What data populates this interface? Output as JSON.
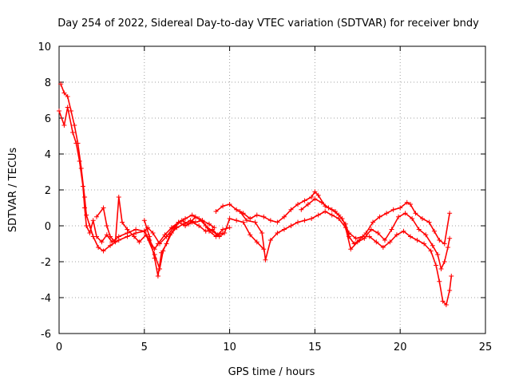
{
  "chart_data": {
    "type": "scatter",
    "title": "Day 254 of 2022, Sidereal Day-to-day VTEC variation (SDTVAR) for receiver bndy",
    "xlabel": "GPS time / hours",
    "ylabel": "SDTVAR / TECUs",
    "xlim": [
      0,
      25
    ],
    "ylim": [
      -6,
      10
    ],
    "xticks": [
      0,
      5,
      10,
      15,
      20,
      25
    ],
    "yticks": [
      -6,
      -4,
      -2,
      0,
      2,
      4,
      6,
      8,
      10
    ],
    "grid": true,
    "marker": "+",
    "color": "#ff0000",
    "series": [
      {
        "name": "track-1",
        "points": [
          [
            0.0,
            6.4
          ],
          [
            0.3,
            5.6
          ],
          [
            0.5,
            6.6
          ],
          [
            0.8,
            5.2
          ],
          [
            1.0,
            4.6
          ],
          [
            1.2,
            3.6
          ],
          [
            1.4,
            2.2
          ],
          [
            1.5,
            1.0
          ],
          [
            1.6,
            0.0
          ],
          [
            1.8,
            -0.4
          ],
          [
            2.0,
            0.3
          ],
          [
            2.2,
            -0.6
          ],
          [
            2.5,
            -0.9
          ],
          [
            2.8,
            -0.5
          ],
          [
            3.1,
            -0.9
          ],
          [
            3.5,
            -0.6
          ],
          [
            4.0,
            -0.4
          ],
          [
            4.5,
            -0.2
          ],
          [
            5.0,
            -0.3
          ],
          [
            5.3,
            -0.8
          ],
          [
            5.6,
            -1.3
          ],
          [
            5.8,
            -1.0
          ],
          [
            6.2,
            -0.5
          ],
          [
            6.6,
            -0.1
          ],
          [
            7.0,
            0.2
          ],
          [
            7.4,
            0.0
          ],
          [
            7.8,
            0.2
          ],
          [
            8.2,
            0.0
          ],
          [
            8.6,
            -0.3
          ],
          [
            9.0,
            -0.2
          ],
          [
            9.3,
            -0.5
          ],
          [
            9.6,
            -0.4
          ]
        ]
      },
      {
        "name": "track-2",
        "points": [
          [
            0.1,
            7.9
          ],
          [
            0.3,
            7.4
          ],
          [
            0.5,
            7.2
          ],
          [
            0.7,
            6.4
          ],
          [
            0.9,
            5.6
          ],
          [
            1.1,
            4.6
          ],
          [
            1.3,
            3.2
          ],
          [
            1.5,
            1.6
          ],
          [
            1.6,
            0.6
          ],
          [
            1.8,
            0.0
          ],
          [
            2.0,
            -0.6
          ],
          [
            2.3,
            -1.2
          ],
          [
            2.6,
            -1.4
          ],
          [
            3.0,
            -1.1
          ],
          [
            3.5,
            -0.8
          ],
          [
            4.0,
            -0.6
          ],
          [
            4.5,
            -0.4
          ],
          [
            5.0,
            -0.3
          ],
          [
            5.2,
            -0.1
          ],
          [
            5.5,
            -0.4
          ],
          [
            5.9,
            -1.0
          ],
          [
            6.3,
            -0.6
          ],
          [
            6.7,
            -0.1
          ],
          [
            7.2,
            0.3
          ],
          [
            7.6,
            0.1
          ],
          [
            8.0,
            0.5
          ],
          [
            8.4,
            0.3
          ],
          [
            8.8,
            -0.3
          ],
          [
            9.2,
            -0.6
          ],
          [
            9.6,
            -0.2
          ],
          [
            10.0,
            -0.1
          ]
        ]
      },
      {
        "name": "track-3",
        "points": [
          [
            2.2,
            0.5
          ],
          [
            2.6,
            1.0
          ],
          [
            2.8,
            0.0
          ],
          [
            3.0,
            -0.6
          ],
          [
            3.3,
            -0.9
          ],
          [
            3.5,
            1.6
          ],
          [
            3.7,
            0.2
          ],
          [
            4.0,
            -0.2
          ],
          [
            4.4,
            -0.6
          ],
          [
            4.7,
            -0.9
          ],
          [
            5.1,
            -0.5
          ],
          [
            5.6,
            -1.6
          ],
          [
            5.9,
            -2.4
          ],
          [
            6.1,
            -1.4
          ],
          [
            6.5,
            -0.5
          ],
          [
            6.9,
            -0.1
          ],
          [
            7.3,
            0.1
          ],
          [
            7.7,
            0.3
          ],
          [
            8.0,
            0.2
          ],
          [
            8.4,
            0.3
          ],
          [
            8.8,
            0.1
          ],
          [
            9.1,
            -0.1
          ]
        ]
      },
      {
        "name": "track-4",
        "points": [
          [
            5.0,
            0.3
          ],
          [
            5.3,
            -0.6
          ],
          [
            5.6,
            -1.8
          ],
          [
            5.8,
            -2.8
          ],
          [
            6.0,
            -1.5
          ],
          [
            6.3,
            -1.0
          ],
          [
            6.6,
            -0.4
          ],
          [
            7.0,
            0.2
          ],
          [
            7.4,
            0.4
          ],
          [
            7.8,
            0.6
          ],
          [
            8.2,
            0.4
          ],
          [
            8.6,
            0.0
          ],
          [
            9.0,
            -0.3
          ],
          [
            9.4,
            -0.6
          ],
          [
            9.7,
            -0.4
          ],
          [
            10.0,
            0.4
          ],
          [
            10.4,
            0.3
          ],
          [
            10.8,
            0.2
          ],
          [
            11.2,
            -0.5
          ],
          [
            11.6,
            -0.9
          ],
          [
            12.0,
            -1.3
          ]
        ]
      },
      {
        "name": "track-5",
        "points": [
          [
            9.2,
            0.8
          ],
          [
            9.6,
            1.1
          ],
          [
            10.0,
            1.2
          ],
          [
            10.4,
            0.9
          ],
          [
            10.8,
            0.7
          ],
          [
            11.2,
            0.4
          ],
          [
            11.6,
            0.6
          ],
          [
            12.0,
            0.5
          ],
          [
            12.4,
            0.3
          ],
          [
            12.8,
            0.2
          ],
          [
            13.2,
            0.5
          ],
          [
            13.6,
            0.9
          ],
          [
            14.0,
            1.2
          ],
          [
            14.4,
            1.4
          ],
          [
            14.8,
            1.6
          ],
          [
            15.0,
            1.9
          ],
          [
            15.2,
            1.7
          ],
          [
            15.6,
            1.1
          ],
          [
            16.0,
            0.9
          ],
          [
            16.4,
            0.6
          ],
          [
            16.8,
            0.1
          ],
          [
            17.0,
            -0.6
          ],
          [
            17.3,
            -1.0
          ],
          [
            17.6,
            -0.8
          ],
          [
            18.0,
            -0.4
          ],
          [
            18.4,
            0.2
          ],
          [
            18.8,
            0.5
          ],
          [
            19.2,
            0.7
          ],
          [
            19.6,
            0.9
          ],
          [
            20.0,
            1.0
          ],
          [
            20.4,
            1.3
          ],
          [
            20.6,
            1.2
          ],
          [
            20.9,
            0.7
          ],
          [
            21.3,
            0.4
          ],
          [
            21.7,
            0.2
          ],
          [
            22.0,
            -0.3
          ],
          [
            22.3,
            -0.8
          ],
          [
            22.6,
            -1.0
          ],
          [
            22.9,
            0.7
          ]
        ]
      },
      {
        "name": "track-6",
        "points": [
          [
            10.6,
            0.8
          ],
          [
            11.0,
            0.3
          ],
          [
            11.5,
            0.2
          ],
          [
            11.9,
            -0.4
          ],
          [
            12.1,
            -1.9
          ],
          [
            12.4,
            -0.8
          ],
          [
            12.8,
            -0.4
          ],
          [
            13.2,
            -0.2
          ],
          [
            13.6,
            0.0
          ],
          [
            14.0,
            0.2
          ],
          [
            14.4,
            0.3
          ],
          [
            14.8,
            0.4
          ],
          [
            15.2,
            0.6
          ],
          [
            15.6,
            0.8
          ],
          [
            16.0,
            0.6
          ],
          [
            16.4,
            0.4
          ],
          [
            16.8,
            -0.1
          ],
          [
            17.1,
            -1.3
          ],
          [
            17.5,
            -0.9
          ],
          [
            17.9,
            -0.7
          ],
          [
            18.3,
            -0.2
          ],
          [
            18.7,
            -0.4
          ],
          [
            19.1,
            -0.8
          ],
          [
            19.5,
            -0.2
          ],
          [
            19.9,
            0.5
          ],
          [
            20.3,
            0.7
          ],
          [
            20.7,
            0.4
          ],
          [
            21.1,
            -0.2
          ],
          [
            21.5,
            -0.5
          ],
          [
            21.9,
            -1.1
          ],
          [
            22.2,
            -1.6
          ],
          [
            22.4,
            -2.4
          ],
          [
            22.6,
            -2.0
          ],
          [
            22.8,
            -1.2
          ],
          [
            22.9,
            -0.7
          ]
        ]
      },
      {
        "name": "track-7",
        "points": [
          [
            14.2,
            0.9
          ],
          [
            14.6,
            1.2
          ],
          [
            15.0,
            1.5
          ],
          [
            15.4,
            1.3
          ],
          [
            15.8,
            1.0
          ],
          [
            16.2,
            0.8
          ],
          [
            16.6,
            0.4
          ],
          [
            17.0,
            -0.4
          ],
          [
            17.4,
            -0.7
          ],
          [
            17.8,
            -0.6
          ],
          [
            18.2,
            -0.6
          ],
          [
            18.6,
            -0.9
          ],
          [
            19.0,
            -1.2
          ],
          [
            19.4,
            -0.9
          ],
          [
            19.8,
            -0.5
          ],
          [
            20.2,
            -0.3
          ],
          [
            20.6,
            -0.6
          ],
          [
            21.0,
            -0.8
          ],
          [
            21.4,
            -1.0
          ],
          [
            21.8,
            -1.4
          ],
          [
            22.1,
            -2.2
          ],
          [
            22.3,
            -3.1
          ],
          [
            22.5,
            -4.2
          ],
          [
            22.7,
            -4.4
          ],
          [
            22.9,
            -3.6
          ],
          [
            23.0,
            -2.8
          ]
        ]
      }
    ]
  }
}
